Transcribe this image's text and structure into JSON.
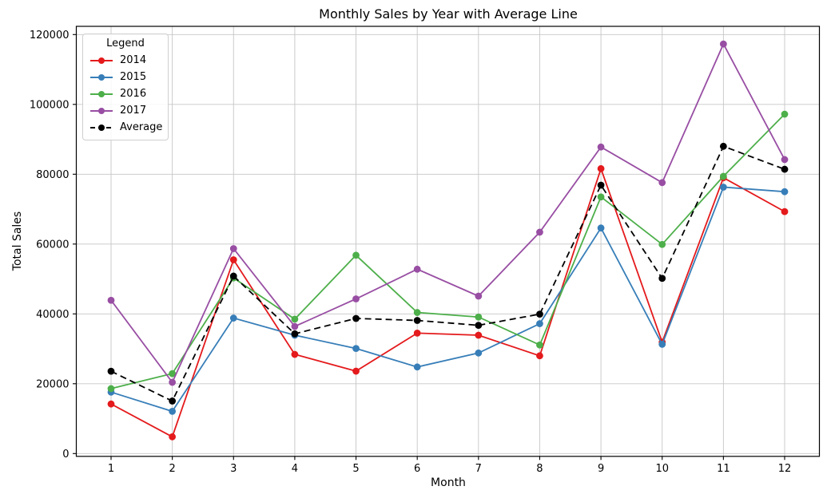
{
  "figure": {
    "title": "Monthly Sales by Year with Average Line",
    "xlabel": "Month",
    "ylabel": "Total Sales",
    "legend_title": "Legend"
  },
  "chart_data": {
    "type": "line",
    "title": "Monthly Sales by Year with Average Line",
    "xlabel": "Month",
    "ylabel": "Total Sales",
    "grid": true,
    "legend_position": "upper left",
    "legend_title": "Legend",
    "categories": [
      "1",
      "2",
      "3",
      "4",
      "5",
      "6",
      "7",
      "8",
      "9",
      "10",
      "11",
      "12"
    ],
    "y_ticks": [
      0,
      20000,
      40000,
      60000,
      80000,
      100000,
      120000
    ],
    "y_tick_labels": [
      "0",
      "20000",
      "40000",
      "60000",
      "80000",
      "100000",
      "120000"
    ],
    "ylim": [
      -800,
      122400
    ],
    "colors": {
      "grid": "#c6c6c6",
      "spine": "#000000",
      "text": "#000000"
    },
    "series": [
      {
        "name": "2014",
        "color": "#e41a1c",
        "dashed": false,
        "values": [
          14200,
          4800,
          55500,
          28400,
          23600,
          34500,
          33900,
          28000,
          81600,
          31900,
          79000,
          69300
        ]
      },
      {
        "name": "2015",
        "color": "#377eb8",
        "dashed": false,
        "values": [
          17600,
          12100,
          38800,
          33900,
          30100,
          24800,
          28800,
          37200,
          64600,
          31300,
          76300,
          75000
        ]
      },
      {
        "name": "2016",
        "color": "#4daf4a",
        "dashed": false,
        "values": [
          18600,
          22900,
          50300,
          38500,
          56800,
          40400,
          39100,
          31100,
          73500,
          59900,
          79400,
          97200
        ]
      },
      {
        "name": "2017",
        "color": "#984ea3",
        "dashed": false,
        "values": [
          43900,
          20400,
          58700,
          36400,
          44300,
          52800,
          45100,
          63400,
          87800,
          77600,
          117300,
          84200
        ]
      },
      {
        "name": "Average",
        "color": "#000000",
        "dashed": true,
        "values": [
          23575,
          15050,
          50825,
          34300,
          38700,
          38125,
          36725,
          39925,
          76875,
          50175,
          88000,
          81425
        ]
      }
    ]
  }
}
